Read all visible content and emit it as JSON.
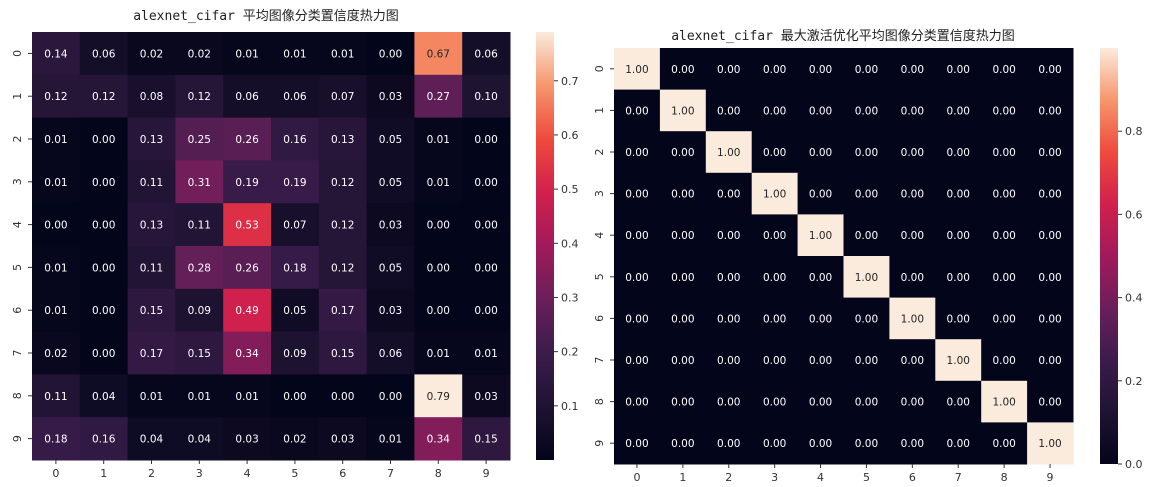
{
  "chart_data": [
    {
      "type": "heatmap",
      "title": "alexnet_cifar 平均图像分类置信度热力图",
      "x_ticks": [
        "0",
        "1",
        "2",
        "3",
        "4",
        "5",
        "6",
        "7",
        "8",
        "9"
      ],
      "y_ticks": [
        "0",
        "1",
        "2",
        "3",
        "4",
        "5",
        "6",
        "7",
        "8",
        "9"
      ],
      "colorbar_range": [
        0.0,
        0.79
      ],
      "colorbar_ticks": [
        "0.1",
        "0.2",
        "0.3",
        "0.4",
        "0.5",
        "0.6",
        "0.7"
      ],
      "colorbar_tick_values": [
        0.1,
        0.2,
        0.3,
        0.4,
        0.5,
        0.6,
        0.7
      ],
      "colormap": "rocket",
      "annotated": true,
      "values": [
        [
          0.14,
          0.06,
          0.02,
          0.02,
          0.01,
          0.01,
          0.01,
          0.0,
          0.67,
          0.06
        ],
        [
          0.12,
          0.12,
          0.08,
          0.12,
          0.06,
          0.06,
          0.07,
          0.03,
          0.27,
          0.1
        ],
        [
          0.01,
          0.0,
          0.13,
          0.25,
          0.26,
          0.16,
          0.13,
          0.05,
          0.01,
          0.0
        ],
        [
          0.01,
          0.0,
          0.11,
          0.31,
          0.19,
          0.19,
          0.12,
          0.05,
          0.01,
          0.0
        ],
        [
          0.0,
          0.0,
          0.13,
          0.11,
          0.53,
          0.07,
          0.12,
          0.03,
          0.0,
          0.0
        ],
        [
          0.01,
          0.0,
          0.11,
          0.28,
          0.26,
          0.18,
          0.12,
          0.05,
          0.0,
          0.0
        ],
        [
          0.01,
          0.0,
          0.15,
          0.09,
          0.49,
          0.05,
          0.17,
          0.03,
          0.0,
          0.0
        ],
        [
          0.02,
          0.0,
          0.17,
          0.15,
          0.34,
          0.09,
          0.15,
          0.06,
          0.01,
          0.01
        ],
        [
          0.11,
          0.04,
          0.01,
          0.01,
          0.01,
          0.0,
          0.0,
          0.0,
          0.79,
          0.03
        ],
        [
          0.18,
          0.16,
          0.04,
          0.04,
          0.03,
          0.02,
          0.03,
          0.01,
          0.34,
          0.15
        ]
      ]
    },
    {
      "type": "heatmap",
      "title": "alexnet_cifar 最大激活优化平均图像分类置信度热力图",
      "x_ticks": [
        "0",
        "1",
        "2",
        "3",
        "4",
        "5",
        "6",
        "7",
        "8",
        "9"
      ],
      "y_ticks": [
        "0",
        "1",
        "2",
        "3",
        "4",
        "5",
        "6",
        "7",
        "8",
        "9"
      ],
      "colorbar_range": [
        0.0,
        1.0
      ],
      "colorbar_ticks": [
        "0.0",
        "0.2",
        "0.4",
        "0.6",
        "0.8"
      ],
      "colorbar_tick_values": [
        0.0,
        0.2,
        0.4,
        0.6,
        0.8
      ],
      "colormap": "rocket",
      "annotated": true,
      "values": [
        [
          1.0,
          0.0,
          0.0,
          0.0,
          0.0,
          0.0,
          0.0,
          0.0,
          0.0,
          0.0
        ],
        [
          0.0,
          1.0,
          0.0,
          0.0,
          0.0,
          0.0,
          0.0,
          0.0,
          0.0,
          0.0
        ],
        [
          0.0,
          0.0,
          1.0,
          0.0,
          0.0,
          0.0,
          0.0,
          0.0,
          0.0,
          0.0
        ],
        [
          0.0,
          0.0,
          0.0,
          1.0,
          0.0,
          0.0,
          0.0,
          0.0,
          0.0,
          0.0
        ],
        [
          0.0,
          0.0,
          0.0,
          0.0,
          1.0,
          0.0,
          0.0,
          0.0,
          0.0,
          0.0
        ],
        [
          0.0,
          0.0,
          0.0,
          0.0,
          0.0,
          1.0,
          0.0,
          0.0,
          0.0,
          0.0
        ],
        [
          0.0,
          0.0,
          0.0,
          0.0,
          0.0,
          0.0,
          1.0,
          0.0,
          0.0,
          0.0
        ],
        [
          0.0,
          0.0,
          0.0,
          0.0,
          0.0,
          0.0,
          0.0,
          1.0,
          0.0,
          0.0
        ],
        [
          0.0,
          0.0,
          0.0,
          0.0,
          0.0,
          0.0,
          0.0,
          0.0,
          1.0,
          0.0
        ],
        [
          0.0,
          0.0,
          0.0,
          0.0,
          0.0,
          0.0,
          0.0,
          0.0,
          0.0,
          1.0
        ]
      ]
    }
  ]
}
